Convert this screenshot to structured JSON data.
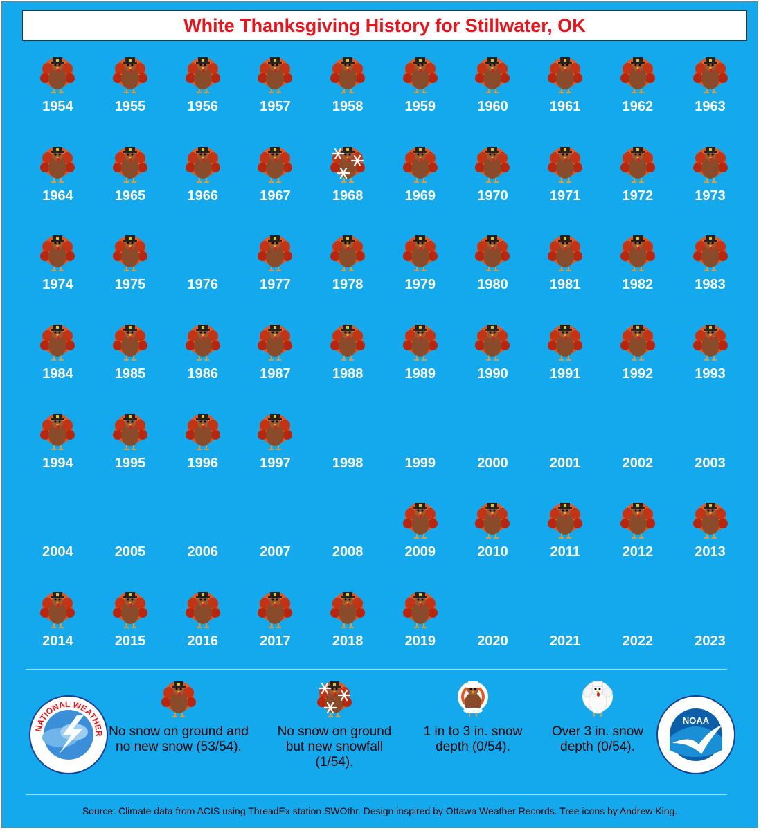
{
  "title": "White Thanksgiving History for Stillwater, OK",
  "years": [
    {
      "year": "1954",
      "category": "none"
    },
    {
      "year": "1955",
      "category": "none"
    },
    {
      "year": "1956",
      "category": "none"
    },
    {
      "year": "1957",
      "category": "none"
    },
    {
      "year": "1958",
      "category": "none"
    },
    {
      "year": "1959",
      "category": "none"
    },
    {
      "year": "1960",
      "category": "none"
    },
    {
      "year": "1961",
      "category": "none"
    },
    {
      "year": "1962",
      "category": "none"
    },
    {
      "year": "1963",
      "category": "none"
    },
    {
      "year": "1964",
      "category": "none"
    },
    {
      "year": "1965",
      "category": "none"
    },
    {
      "year": "1966",
      "category": "none"
    },
    {
      "year": "1967",
      "category": "none"
    },
    {
      "year": "1968",
      "category": "new_snowfall"
    },
    {
      "year": "1969",
      "category": "none"
    },
    {
      "year": "1970",
      "category": "none"
    },
    {
      "year": "1971",
      "category": "none"
    },
    {
      "year": "1972",
      "category": "none"
    },
    {
      "year": "1973",
      "category": "none"
    },
    {
      "year": "1974",
      "category": "none"
    },
    {
      "year": "1975",
      "category": "none"
    },
    {
      "year": "1976",
      "category": "missing"
    },
    {
      "year": "1977",
      "category": "none"
    },
    {
      "year": "1978",
      "category": "none"
    },
    {
      "year": "1979",
      "category": "none"
    },
    {
      "year": "1980",
      "category": "none"
    },
    {
      "year": "1981",
      "category": "none"
    },
    {
      "year": "1982",
      "category": "none"
    },
    {
      "year": "1983",
      "category": "none"
    },
    {
      "year": "1984",
      "category": "none"
    },
    {
      "year": "1985",
      "category": "none"
    },
    {
      "year": "1986",
      "category": "none"
    },
    {
      "year": "1987",
      "category": "none"
    },
    {
      "year": "1988",
      "category": "none"
    },
    {
      "year": "1989",
      "category": "none"
    },
    {
      "year": "1990",
      "category": "none"
    },
    {
      "year": "1991",
      "category": "none"
    },
    {
      "year": "1992",
      "category": "none"
    },
    {
      "year": "1993",
      "category": "none"
    },
    {
      "year": "1994",
      "category": "none"
    },
    {
      "year": "1995",
      "category": "none"
    },
    {
      "year": "1996",
      "category": "none"
    },
    {
      "year": "1997",
      "category": "none"
    },
    {
      "year": "1998",
      "category": "missing"
    },
    {
      "year": "1999",
      "category": "missing"
    },
    {
      "year": "2000",
      "category": "missing"
    },
    {
      "year": "2001",
      "category": "missing"
    },
    {
      "year": "2002",
      "category": "missing"
    },
    {
      "year": "2003",
      "category": "missing"
    },
    {
      "year": "2004",
      "category": "missing"
    },
    {
      "year": "2005",
      "category": "missing"
    },
    {
      "year": "2006",
      "category": "missing"
    },
    {
      "year": "2007",
      "category": "missing"
    },
    {
      "year": "2008",
      "category": "missing"
    },
    {
      "year": "2009",
      "category": "none"
    },
    {
      "year": "2010",
      "category": "none"
    },
    {
      "year": "2011",
      "category": "none"
    },
    {
      "year": "2012",
      "category": "none"
    },
    {
      "year": "2013",
      "category": "none"
    },
    {
      "year": "2014",
      "category": "none"
    },
    {
      "year": "2015",
      "category": "none"
    },
    {
      "year": "2016",
      "category": "none"
    },
    {
      "year": "2017",
      "category": "none"
    },
    {
      "year": "2018",
      "category": "none"
    },
    {
      "year": "2019",
      "category": "none"
    },
    {
      "year": "2020",
      "category": "missing"
    },
    {
      "year": "2021",
      "category": "missing"
    },
    {
      "year": "2022",
      "category": "missing"
    },
    {
      "year": "2023",
      "category": "missing"
    }
  ],
  "legend": {
    "none": "No snow on ground and no new snow (53/54).",
    "new_snowfall": "No snow on ground but new snowfall (1/54).",
    "depth_1_3": "1 in to 3 in. snow depth (0/54).",
    "depth_over_3": "Over 3 in. snow depth (0/54)."
  },
  "logos": {
    "nws": "NATIONAL WEATHER SERVICE",
    "noaa": "NOAA"
  },
  "source": "Source: Climate data from ACIS using ThreadEx station SWOthr. Design inspired by Ottawa Weather Records. Tree icons by Andrew King.",
  "colors": {
    "background": "#14a8ec",
    "title": "#e8141c",
    "year_text": "#ffffff"
  }
}
